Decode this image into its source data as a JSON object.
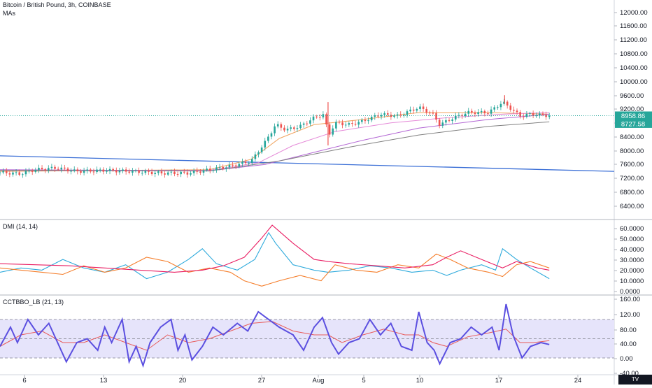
{
  "header": {
    "symbol_line": "Bitcoin / British Pound, 3h, COINBASE",
    "indicator_label": "MAs"
  },
  "brand": "TV",
  "colors": {
    "up": "#26a69a",
    "down": "#ef5350",
    "trendline": "#3b6fd6",
    "ma_fast": "#f0a35e",
    "ma_mid": "#e58ad8",
    "ma_slow": "#b366d4",
    "ma_long": "#808080",
    "dmi_plus": "#2eaadc",
    "dmi_minus": "#f57f2d",
    "adx": "#e91e63",
    "cctbbo": "#5b4fe0",
    "cctbbo_signal": "#e85a5a",
    "band_fill": "#e6e4fb",
    "last_price_badge": "#26a69a",
    "ma_badge": "#26a69a"
  },
  "chart_data": [
    {
      "type": "candlestick",
      "title": "Bitcoin / British Pound, 3h, COINBASE",
      "ylim": [
        6000,
        12300
      ],
      "y_ticks": [
        "12000.00",
        "11600.00",
        "11200.00",
        "10800.00",
        "10400.00",
        "10000.00",
        "9600.00",
        "9200.00",
        "8800.00",
        "8400.00",
        "8000.00",
        "7600.00",
        "7200.00",
        "6800.00",
        "6400.00"
      ],
      "x_ticks": [
        "6",
        "13",
        "20",
        "27",
        "Aug",
        "5",
        "10",
        "17",
        "24"
      ],
      "price_path": [
        [
          0,
          7320
        ],
        [
          30,
          7280
        ],
        [
          50,
          7400
        ],
        [
          80,
          7450
        ],
        [
          110,
          7350
        ],
        [
          150,
          7380
        ],
        [
          190,
          7350
        ],
        [
          230,
          7300
        ],
        [
          270,
          7300
        ],
        [
          300,
          7400
        ],
        [
          330,
          7500
        ],
        [
          360,
          7650
        ],
        [
          380,
          8200
        ],
        [
          395,
          8700
        ],
        [
          410,
          8550
        ],
        [
          430,
          8650
        ],
        [
          450,
          8900
        ],
        [
          465,
          9000
        ],
        [
          470,
          8350
        ],
        [
          480,
          8750
        ],
        [
          500,
          8700
        ],
        [
          520,
          8800
        ],
        [
          545,
          9000
        ],
        [
          570,
          8950
        ],
        [
          600,
          9200
        ],
        [
          620,
          9000
        ],
        [
          630,
          8700
        ],
        [
          650,
          8900
        ],
        [
          670,
          9050
        ],
        [
          700,
          9050
        ],
        [
          720,
          9350
        ],
        [
          730,
          9200
        ],
        [
          745,
          8950
        ],
        [
          760,
          9000
        ],
        [
          787,
          8960
        ]
      ],
      "spikes": [
        [
          470,
          9350
        ],
        [
          470,
          8100
        ],
        [
          723,
          9550
        ]
      ],
      "trendline": [
        [
          0,
          7800
        ],
        [
          880,
          7350
        ]
      ],
      "moving_averages": [
        {
          "color_key": "ma_fast",
          "points": [
            [
              0,
              7350
            ],
            [
              300,
              7400
            ],
            [
              360,
              7700
            ],
            [
              400,
              8300
            ],
            [
              450,
              8700
            ],
            [
              520,
              8850
            ],
            [
              600,
              9050
            ],
            [
              700,
              9050
            ],
            [
              787,
              9000
            ]
          ]
        },
        {
          "color_key": "ma_mid",
          "points": [
            [
              0,
              7380
            ],
            [
              300,
              7380
            ],
            [
              370,
              7600
            ],
            [
              420,
              8100
            ],
            [
              480,
              8500
            ],
            [
              560,
              8750
            ],
            [
              640,
              8900
            ],
            [
              720,
              9000
            ],
            [
              787,
              9050
            ]
          ]
        },
        {
          "color_key": "ma_slow",
          "points": [
            [
              0,
              7400
            ],
            [
              300,
              7370
            ],
            [
              380,
              7550
            ],
            [
              450,
              7900
            ],
            [
              520,
              8250
            ],
            [
              600,
              8600
            ],
            [
              700,
              8850
            ],
            [
              787,
              9000
            ]
          ]
        },
        {
          "color_key": "ma_long",
          "points": [
            [
              0,
              7380
            ],
            [
              300,
              7360
            ],
            [
              400,
              7650
            ],
            [
              500,
              8050
            ],
            [
              600,
              8400
            ],
            [
              700,
              8650
            ],
            [
              787,
              8780
            ]
          ]
        }
      ],
      "last_price": "8958.86",
      "ma_value": "8727.58"
    },
    {
      "type": "line",
      "title": "DMI (14, 14)",
      "ylim": [
        -2,
        66
      ],
      "y_ticks": [
        "60.0000",
        "50.0000",
        "40.0000",
        "30.0000",
        "20.0000",
        "10.0000",
        "0.0000"
      ],
      "series": [
        {
          "color_key": "dmi_plus",
          "points": [
            [
              0,
              18
            ],
            [
              30,
              22
            ],
            [
              60,
              20
            ],
            [
              90,
              30
            ],
            [
              120,
              22
            ],
            [
              150,
              18
            ],
            [
              180,
              25
            ],
            [
              210,
              12
            ],
            [
              240,
              18
            ],
            [
              270,
              30
            ],
            [
              290,
              40
            ],
            [
              310,
              26
            ],
            [
              340,
              20
            ],
            [
              365,
              30
            ],
            [
              385,
              55
            ],
            [
              395,
              45
            ],
            [
              420,
              25
            ],
            [
              450,
              20
            ],
            [
              470,
              18
            ],
            [
              500,
              20
            ],
            [
              530,
              24
            ],
            [
              560,
              22
            ],
            [
              590,
              18
            ],
            [
              620,
              20
            ],
            [
              640,
              15
            ],
            [
              660,
              20
            ],
            [
              690,
              25
            ],
            [
              710,
              20
            ],
            [
              720,
              40
            ],
            [
              740,
              30
            ],
            [
              760,
              22
            ],
            [
              787,
              12
            ]
          ]
        },
        {
          "color_key": "dmi_minus",
          "points": [
            [
              0,
              22
            ],
            [
              30,
              20
            ],
            [
              60,
              18
            ],
            [
              90,
              16
            ],
            [
              120,
              24
            ],
            [
              150,
              18
            ],
            [
              180,
              22
            ],
            [
              210,
              32
            ],
            [
              240,
              28
            ],
            [
              270,
              18
            ],
            [
              300,
              22
            ],
            [
              330,
              18
            ],
            [
              350,
              10
            ],
            [
              375,
              5
            ],
            [
              400,
              10
            ],
            [
              430,
              15
            ],
            [
              460,
              10
            ],
            [
              480,
              25
            ],
            [
              510,
              20
            ],
            [
              540,
              18
            ],
            [
              570,
              25
            ],
            [
              600,
              22
            ],
            [
              625,
              35
            ],
            [
              645,
              30
            ],
            [
              670,
              22
            ],
            [
              700,
              18
            ],
            [
              720,
              14
            ],
            [
              740,
              25
            ],
            [
              760,
              28
            ],
            [
              787,
              22
            ]
          ]
        },
        {
          "color_key": "adx",
          "points": [
            [
              0,
              26
            ],
            [
              50,
              25
            ],
            [
              100,
              24
            ],
            [
              150,
              22
            ],
            [
              200,
              20
            ],
            [
              250,
              18
            ],
            [
              290,
              20
            ],
            [
              320,
              24
            ],
            [
              350,
              32
            ],
            [
              375,
              50
            ],
            [
              390,
              62
            ],
            [
              420,
              45
            ],
            [
              450,
              30
            ],
            [
              470,
              28
            ],
            [
              500,
              26
            ],
            [
              540,
              24
            ],
            [
              580,
              22
            ],
            [
              620,
              25
            ],
            [
              640,
              32
            ],
            [
              660,
              38
            ],
            [
              690,
              30
            ],
            [
              720,
              22
            ],
            [
              740,
              28
            ],
            [
              770,
              22
            ],
            [
              787,
              20
            ]
          ]
        }
      ]
    },
    {
      "type": "line",
      "title": "CCTBBO_LB (21, 13)",
      "ylim": [
        -40,
        160
      ],
      "y_ticks": [
        "160.00",
        "120.00",
        "80.00",
        "40.00",
        "0.00",
        "-40.00"
      ],
      "band": [
        0,
        100
      ],
      "midline": 50,
      "series": [
        {
          "color_key": "cctbbo",
          "points": [
            [
              0,
              30
            ],
            [
              15,
              80
            ],
            [
              25,
              40
            ],
            [
              40,
              100
            ],
            [
              55,
              60
            ],
            [
              70,
              90
            ],
            [
              85,
              30
            ],
            [
              95,
              -10
            ],
            [
              110,
              40
            ],
            [
              125,
              50
            ],
            [
              140,
              20
            ],
            [
              150,
              80
            ],
            [
              160,
              40
            ],
            [
              175,
              100
            ],
            [
              185,
              -10
            ],
            [
              195,
              30
            ],
            [
              205,
              -20
            ],
            [
              215,
              40
            ],
            [
              230,
              80
            ],
            [
              245,
              100
            ],
            [
              255,
              20
            ],
            [
              265,
              60
            ],
            [
              275,
              -5
            ],
            [
              290,
              30
            ],
            [
              305,
              80
            ],
            [
              320,
              60
            ],
            [
              340,
              90
            ],
            [
              355,
              70
            ],
            [
              370,
              120
            ],
            [
              385,
              100
            ],
            [
              400,
              80
            ],
            [
              420,
              60
            ],
            [
              435,
              20
            ],
            [
              450,
              80
            ],
            [
              462,
              105
            ],
            [
              475,
              40
            ],
            [
              485,
              10
            ],
            [
              500,
              40
            ],
            [
              515,
              50
            ],
            [
              530,
              100
            ],
            [
              545,
              60
            ],
            [
              560,
              90
            ],
            [
              575,
              30
            ],
            [
              590,
              20
            ],
            [
              600,
              120
            ],
            [
              612,
              40
            ],
            [
              622,
              20
            ],
            [
              630,
              -15
            ],
            [
              645,
              40
            ],
            [
              660,
              50
            ],
            [
              675,
              80
            ],
            [
              690,
              60
            ],
            [
              705,
              80
            ],
            [
              715,
              20
            ],
            [
              725,
              140
            ],
            [
              735,
              60
            ],
            [
              748,
              0
            ],
            [
              760,
              30
            ],
            [
              775,
              40
            ],
            [
              787,
              35
            ]
          ]
        },
        {
          "color_key": "cctbbo_signal",
          "points": [
            [
              0,
              30
            ],
            [
              30,
              60
            ],
            [
              60,
              70
            ],
            [
              90,
              40
            ],
            [
              120,
              40
            ],
            [
              150,
              60
            ],
            [
              180,
              40
            ],
            [
              210,
              20
            ],
            [
              240,
              60
            ],
            [
              270,
              40
            ],
            [
              300,
              50
            ],
            [
              330,
              70
            ],
            [
              360,
              90
            ],
            [
              390,
              95
            ],
            [
              420,
              70
            ],
            [
              450,
              60
            ],
            [
              470,
              60
            ],
            [
              490,
              40
            ],
            [
              520,
              60
            ],
            [
              550,
              75
            ],
            [
              580,
              60
            ],
            [
              600,
              60
            ],
            [
              620,
              40
            ],
            [
              640,
              30
            ],
            [
              670,
              55
            ],
            [
              700,
              65
            ],
            [
              725,
              75
            ],
            [
              745,
              40
            ],
            [
              765,
              40
            ],
            [
              787,
              45
            ]
          ]
        }
      ]
    }
  ]
}
